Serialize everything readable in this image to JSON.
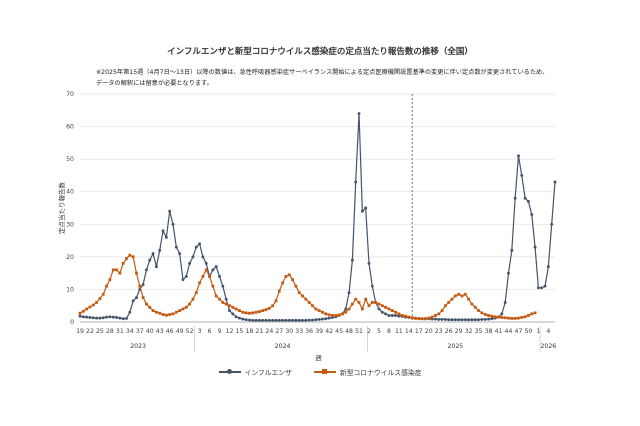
{
  "page": {
    "title": "インフルエンザと新型コロナウイルス感染症の定点当たり報告数の推移（全国）",
    "notes": [
      "※2025年第15週（4月7日〜13日）以降の数値は、急性呼吸器感染症サーベイランス開始による定点医療機関設置基準の変更に伴い定点数が変更されているため、",
      "データの解釈には留意が必要となります。"
    ]
  },
  "chart_data": {
    "type": "line",
    "title": "インフルエンザと新型コロナウイルス感染症の定点当たり報告数の推移（全国）",
    "xlabel": "週",
    "ylabel": "定点当たり報告数",
    "ylim": [
      0,
      70
    ],
    "yticks": [
      0,
      10,
      20,
      30,
      40,
      50,
      60,
      70
    ],
    "grid": true,
    "legend": "bottom",
    "x_tick_labels": [
      "19",
      "22",
      "25",
      "28",
      "31",
      "34",
      "37",
      "40",
      "43",
      "46",
      "49",
      "52",
      "3",
      "6",
      "9",
      "12",
      "15",
      "18",
      "21",
      "24",
      "27",
      "30",
      "33",
      "36",
      "39",
      "42",
      "45",
      "48",
      "51",
      "2",
      "5",
      "8",
      "11",
      "14",
      "17",
      "20",
      "23",
      "26",
      "29",
      "32",
      "35",
      "38",
      "41",
      "44",
      "47",
      "50",
      "1",
      "4"
    ],
    "year_labels": [
      "2023",
      "2024",
      "2025",
      "2026"
    ],
    "vertical_marker": "2025年第15週",
    "series": [
      {
        "name": "インフルエンザ",
        "color": "#44546a",
        "marker": "circle",
        "values": [
          1.8,
          1.6,
          1.5,
          1.4,
          1.3,
          1.2,
          1.2,
          1.3,
          1.5,
          1.6,
          1.5,
          1.4,
          1.2,
          1.0,
          1.1,
          3.0,
          6.5,
          7.5,
          10,
          11.5,
          16,
          19,
          21,
          17,
          22,
          28,
          26,
          34,
          30,
          23,
          21,
          13,
          14,
          18,
          20,
          23,
          24,
          20,
          18,
          14,
          16,
          17,
          14,
          11,
          7,
          3.5,
          2.5,
          1.6,
          1.2,
          0.9,
          0.7,
          0.6,
          0.5,
          0.5,
          0.5,
          0.5,
          0.5,
          0.5,
          0.5,
          0.5,
          0.5,
          0.5,
          0.5,
          0.5,
          0.5,
          0.5,
          0.5,
          0.5,
          0.5,
          0.6,
          0.6,
          0.7,
          0.8,
          0.9,
          1.0,
          1.2,
          1.4,
          1.6,
          2.0,
          2.5,
          4.0,
          9.0,
          19,
          43,
          64,
          34,
          35,
          18,
          11,
          6,
          4,
          3,
          2.5,
          2,
          2,
          2,
          1.8,
          1.7,
          1.5,
          1.4,
          1.3,
          1.2,
          1.1,
          1.0,
          1.0,
          1.0,
          0.9,
          0.9,
          0.8,
          0.8,
          0.8,
          0.7,
          0.7,
          0.7,
          0.7,
          0.7,
          0.7,
          0.7,
          0.7,
          0.7,
          0.7,
          0.8,
          0.8,
          0.9,
          1.0,
          1.2,
          1.5,
          2.5,
          6,
          15,
          22,
          38,
          51,
          45,
          38,
          37,
          33,
          23,
          10.5,
          10.5,
          11,
          17,
          30,
          43
        ]
      },
      {
        "name": "新型コロナウイルス感染症",
        "color": "#c55a11",
        "marker": "square",
        "values": [
          2.7,
          3.3,
          4.0,
          4.6,
          5.2,
          6.0,
          7.2,
          8.5,
          11,
          13,
          16,
          16,
          15,
          18,
          19.5,
          20.5,
          20,
          15,
          11,
          7.5,
          5.5,
          4.5,
          3.5,
          3.0,
          2.7,
          2.3,
          2.1,
          2.3,
          2.5,
          3.0,
          3.5,
          4.0,
          4.5,
          5.5,
          7.0,
          9.0,
          12,
          14,
          16,
          14,
          11,
          8,
          7,
          6,
          5.5,
          5,
          4.5,
          4,
          3.5,
          3,
          2.8,
          2.7,
          2.8,
          3.0,
          3.2,
          3.5,
          3.8,
          4.2,
          5.0,
          6.5,
          9.5,
          12,
          14,
          14.5,
          13,
          11,
          9,
          8,
          7,
          6,
          5,
          4,
          3.5,
          3,
          2.5,
          2.2,
          2.0,
          2.0,
          2.2,
          2.5,
          3.0,
          4.0,
          5.5,
          7.0,
          6.0,
          4.0,
          7.0,
          5.0,
          6.0,
          6.0,
          5.5,
          5.0,
          4.5,
          4.0,
          3.5,
          3.0,
          2.5,
          2.0,
          1.8,
          1.5,
          1.3,
          1.1,
          1.0,
          1.0,
          1.0,
          1.2,
          1.5,
          2.0,
          2.5,
          3.5,
          5.0,
          6.0,
          7.0,
          8.0,
          8.5,
          8.0,
          8.5,
          7.0,
          5.5,
          4.5,
          3.5,
          2.8,
          2.3,
          2.0,
          1.8,
          1.6,
          1.5,
          1.4,
          1.3,
          1.2,
          1.1,
          1.1,
          1.2,
          1.4,
          1.6,
          2.0,
          2.5,
          2.8
        ]
      }
    ]
  },
  "legend_items": [
    {
      "label": "インフルエンザ"
    },
    {
      "label": "新型コロナウイルス感染症"
    }
  ]
}
